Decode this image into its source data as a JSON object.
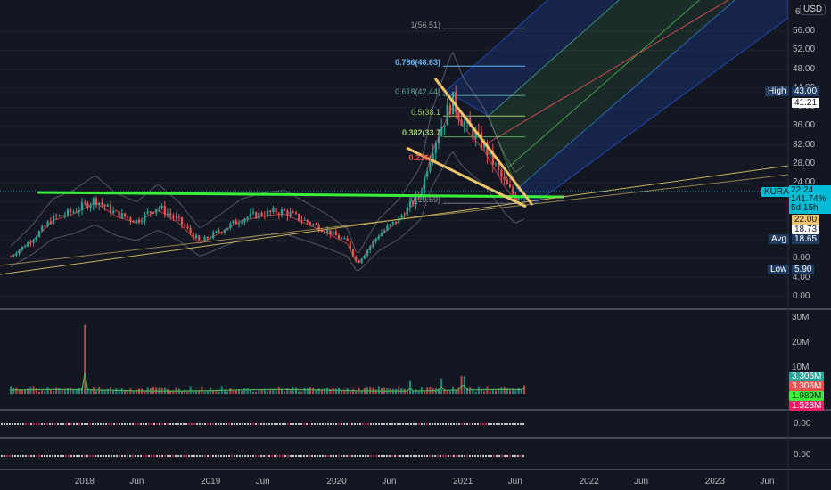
{
  "currency_badge": "USD",
  "price_axis": {
    "ticks": [
      "56.00",
      "52.00",
      "48.00",
      "44.00",
      "40.00",
      "36.00",
      "32.00",
      "28.00",
      "24.00",
      "20.00",
      "16.00",
      "12.00",
      "8.00",
      "4.00",
      "0.00"
    ],
    "top_partial": "6"
  },
  "price_tags": {
    "high_label": "High",
    "high_value": "43.00",
    "prior_close": "41.21",
    "symbol": "KURA",
    "last": "22.24",
    "change_pct": "141.74%",
    "countdown": "5d 15h",
    "level_a": "22.00",
    "level_b": "18.73",
    "avg_label": "Avg",
    "avg_value": "18.65",
    "low_label": "Low",
    "low_value": "5.90"
  },
  "fib_labels": [
    "1(56.51)",
    "0.786(48.63)",
    "0.618(42.44)",
    "0.5(38.1",
    "0.382(33.7",
    "0.236(",
    "0(19.69)"
  ],
  "volume_axis": {
    "ticks": [
      "30M",
      "20M",
      "10M"
    ]
  },
  "volume_tags": [
    "3.306M",
    "3.306M",
    "1.989M",
    "1.528M"
  ],
  "indicator1_value": "0.00",
  "indicator2_value": "0.00",
  "time_axis": [
    "2018",
    "Jun",
    "2019",
    "Jun",
    "2020",
    "Jun",
    "2021",
    "Jun",
    "2022",
    "Jun",
    "2023",
    "Jun"
  ],
  "colors": {
    "background": "#131722",
    "up": "#26a69a",
    "down": "#ef5350",
    "support": "#3bf03b",
    "wedge": "#f0c36d",
    "symbol_tag": "#00bcd4",
    "pitchfork_blue": "#2962ff",
    "pitchfork_green": "#4caf50"
  },
  "chart_data": {
    "type": "candlestick",
    "symbol": "KURA",
    "x_range": [
      "2017-05",
      "2023-08"
    ],
    "ylim": [
      0,
      60
    ],
    "weekly_close": [
      [
        "2017-06",
        8.5
      ],
      [
        "2017-08",
        12.0
      ],
      [
        "2017-10",
        16.5
      ],
      [
        "2017-12",
        18.0
      ],
      [
        "2018-02",
        20.5
      ],
      [
        "2018-04",
        17.5
      ],
      [
        "2018-06",
        16.0
      ],
      [
        "2018-08",
        19.0
      ],
      [
        "2018-10",
        16.0
      ],
      [
        "2018-12",
        11.5
      ],
      [
        "2019-02",
        14.0
      ],
      [
        "2019-04",
        16.5
      ],
      [
        "2019-06",
        17.5
      ],
      [
        "2019-08",
        18.0
      ],
      [
        "2019-10",
        16.0
      ],
      [
        "2019-12",
        14.0
      ],
      [
        "2020-02",
        11.5
      ],
      [
        "2020-03",
        7.0
      ],
      [
        "2020-05",
        13.0
      ],
      [
        "2020-07",
        16.5
      ],
      [
        "2020-09",
        22.0
      ],
      [
        "2020-10",
        31.0
      ],
      [
        "2020-12",
        41.5
      ],
      [
        "2021-01",
        37.0
      ],
      [
        "2021-03",
        32.0
      ],
      [
        "2021-04",
        28.0
      ],
      [
        "2021-05",
        24.0
      ],
      [
        "2021-06",
        21.0
      ],
      [
        "2021-07",
        22.24
      ]
    ],
    "high": 43.0,
    "low": 5.9,
    "avg": 18.65,
    "last": 22.24,
    "fibonacci": [
      {
        "level": 1,
        "price": 56.51
      },
      {
        "level": 0.786,
        "price": 48.63
      },
      {
        "level": 0.618,
        "price": 42.44
      },
      {
        "level": 0.5,
        "price": 38.1
      },
      {
        "level": 0.382,
        "price": 33.7
      },
      {
        "level": 0,
        "price": 19.69
      }
    ],
    "volume": [
      [
        "2018-01",
        27
      ],
      [
        "2020-08",
        5
      ],
      [
        "2020-11",
        6
      ],
      [
        "2021-01",
        7
      ],
      [
        "2021-07",
        3.306
      ]
    ],
    "volume_ylim": [
      0,
      32
    ]
  }
}
